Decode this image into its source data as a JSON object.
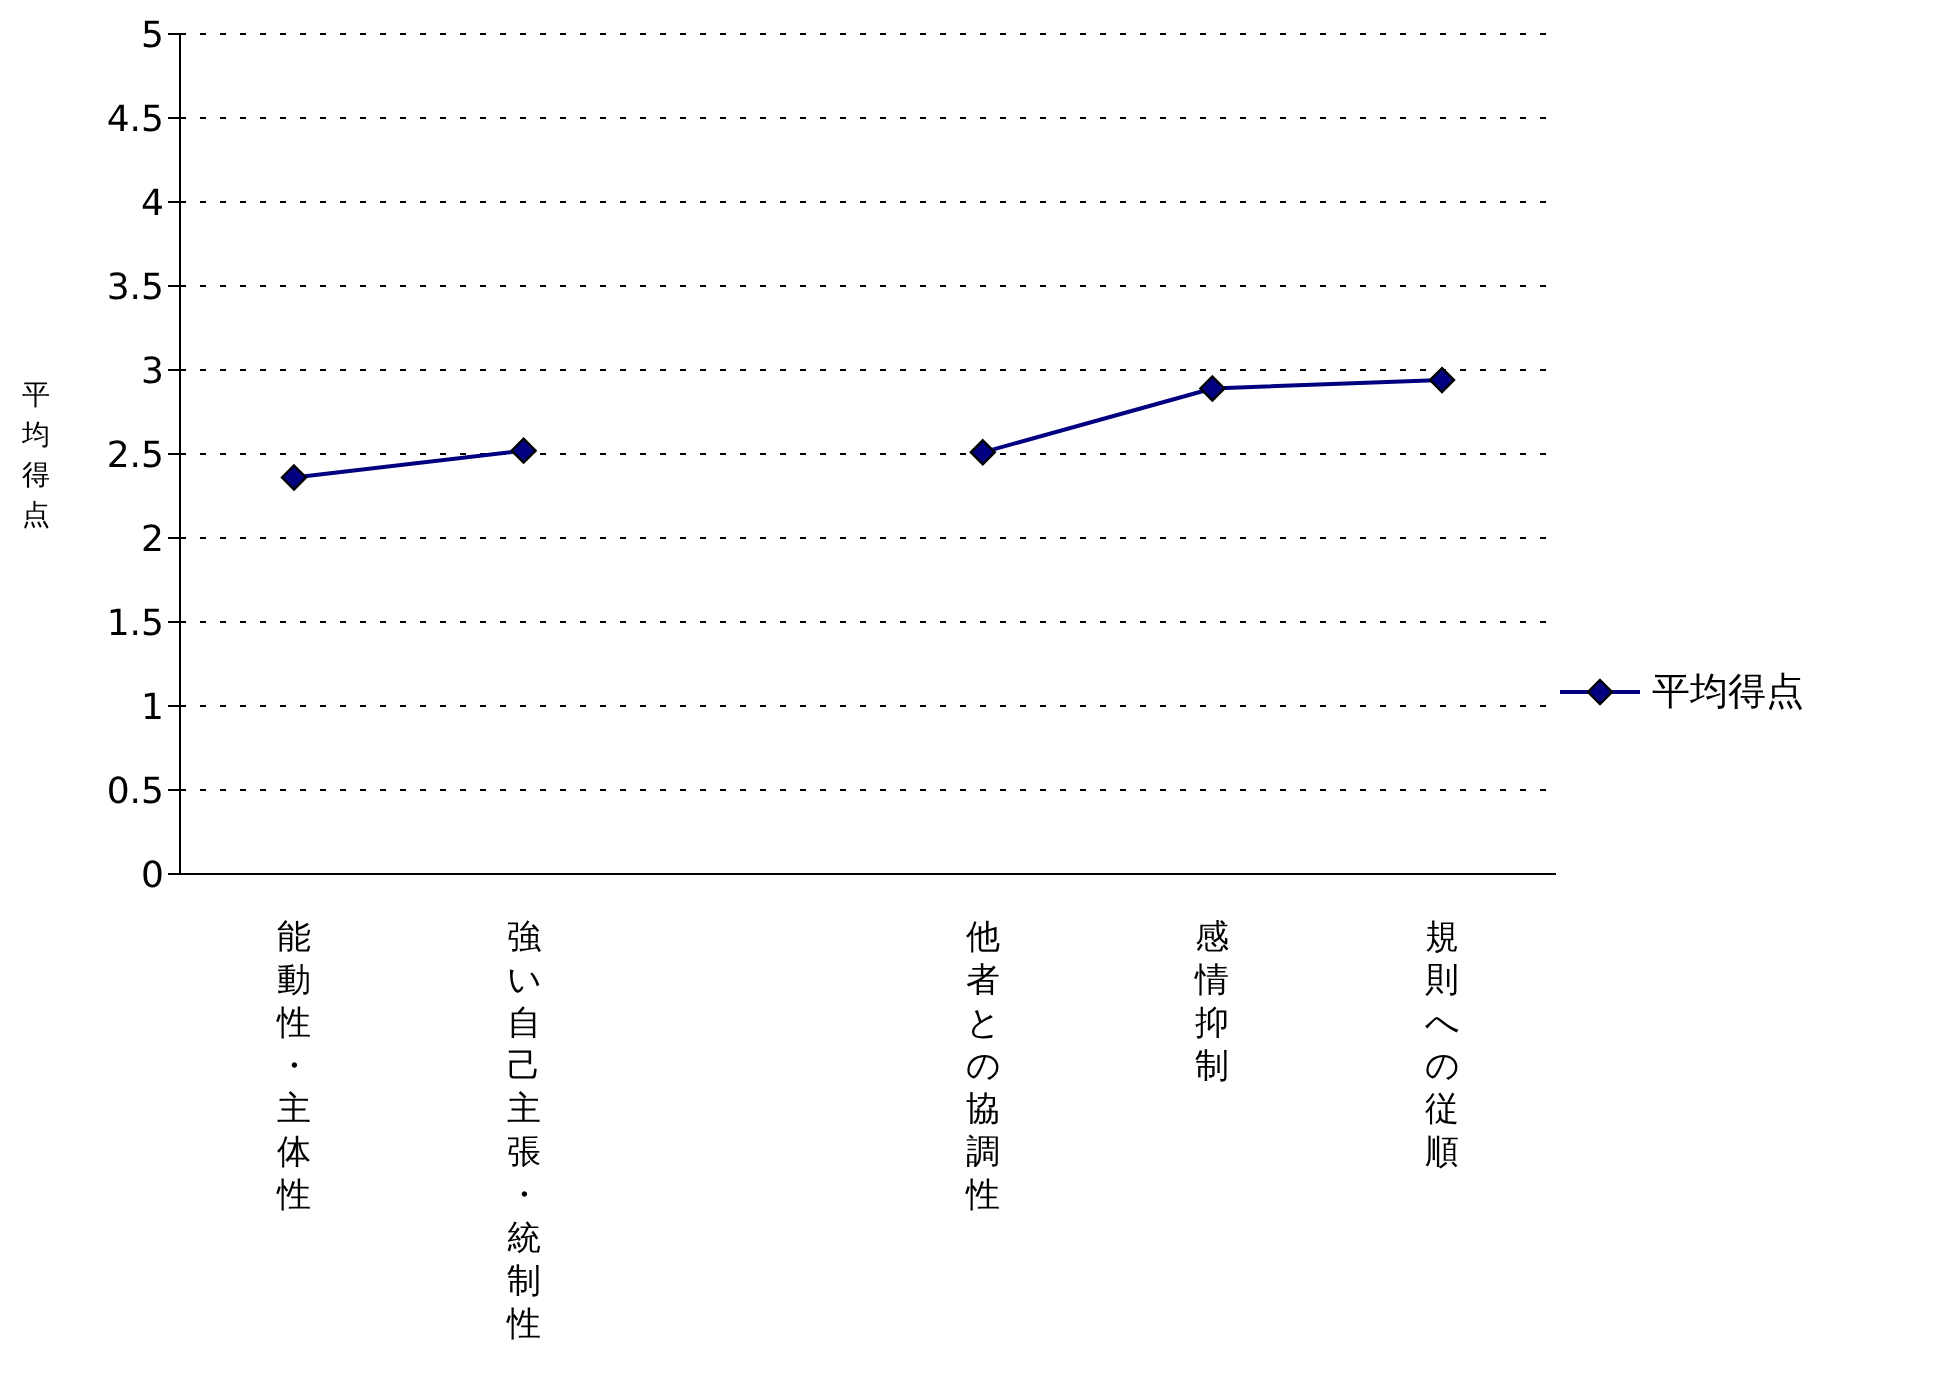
{
  "chart_data": {
    "type": "line",
    "ylabel": "平均得点",
    "categories": [
      "能動性・主体性",
      "強い自己主張・統制性",
      null,
      "他者との協調性",
      "感情抑制",
      "規則への従順"
    ],
    "series": [
      {
        "name": "平均得点",
        "color": "#000080",
        "values": [
          2.36,
          2.52,
          null,
          2.51,
          2.89,
          2.94
        ]
      }
    ],
    "ylim": [
      0,
      5
    ],
    "yticks": [
      0,
      0.5,
      1,
      1.5,
      2,
      2.5,
      3,
      3.5,
      4,
      4.5,
      5
    ],
    "grid": "y",
    "legend": "right",
    "marker": "diamond",
    "line_style": "solid"
  }
}
